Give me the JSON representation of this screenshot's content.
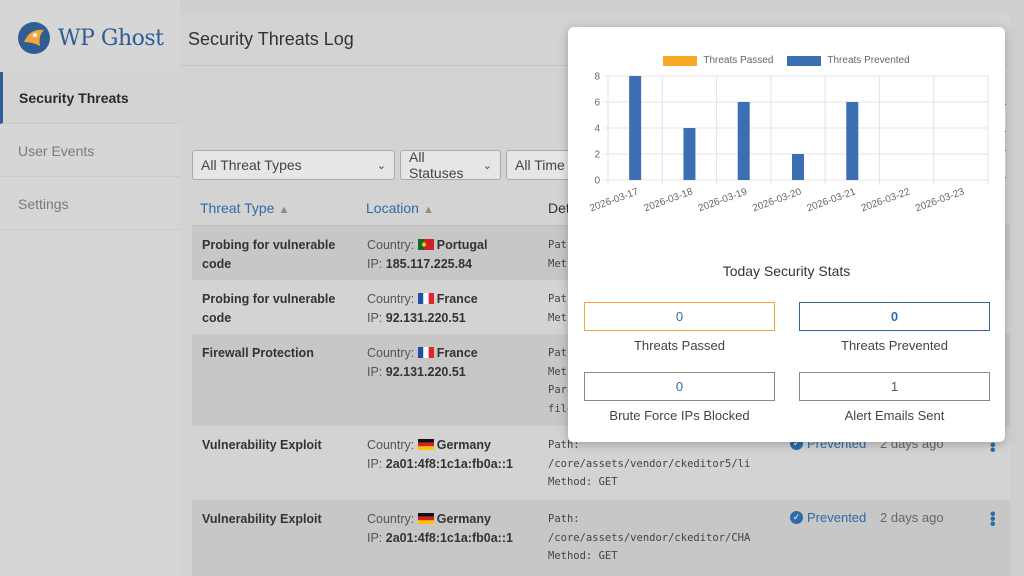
{
  "app": {
    "name": "WP Ghost"
  },
  "sidebar": {
    "items": [
      {
        "label": "Security Threats"
      },
      {
        "label": "User Events"
      },
      {
        "label": "Settings"
      }
    ]
  },
  "page": {
    "title": "Security Threats Log"
  },
  "filters": {
    "threat_types": "All Threat Types",
    "statuses": "All Statuses",
    "time": "All Time"
  },
  "table": {
    "headers": {
      "threat_type": "Threat Type",
      "location": "Location",
      "details": "Det"
    },
    "rows": [
      {
        "type": "Probing for vulnerable code",
        "country_label": "Country:",
        "country": "Portugal",
        "ip_label": "IP:",
        "ip": "185.117.225.84",
        "details": [
          "Path",
          "Met"
        ]
      },
      {
        "type": "Probing for vulnerable code",
        "country_label": "Country:",
        "country": "France",
        "ip_label": "IP:",
        "ip": "92.131.220.51",
        "details": [
          "Path",
          "Met"
        ]
      },
      {
        "type": "Firewall Protection",
        "country_label": "Country:",
        "country": "France",
        "ip_label": "IP:",
        "ip": "92.131.220.51",
        "details": [
          "Path",
          "Meth",
          "Para",
          "file"
        ]
      },
      {
        "type": "Vulnerability Exploit",
        "country_label": "Country:",
        "country": "Germany",
        "ip_label": "IP:",
        "ip": "2a01:4f8:1c1a:fb0a::1",
        "details": [
          "Path:",
          "/core/assets/vendor/ckeditor5/li",
          "Method: GET"
        ],
        "status": "Prevented",
        "when": "2 days ago"
      },
      {
        "type": "Vulnerability Exploit",
        "country_label": "Country:",
        "country": "Germany",
        "ip_label": "IP:",
        "ip": "2a01:4f8:1c1a:fb0a::1",
        "details": [
          "Path:",
          "/core/assets/vendor/ckeditor/CHA",
          "Method: GET"
        ],
        "status": "Prevented",
        "when": "2 days ago"
      }
    ]
  },
  "popup": {
    "legend": [
      "Threats Passed",
      "Threats Prevented"
    ],
    "stats_title": "Today Security Stats",
    "stats": [
      {
        "label": "Threats Passed",
        "value": "0"
      },
      {
        "label": "Threats Prevented",
        "value": "0"
      },
      {
        "label": "Brute Force IPs Blocked",
        "value": "0"
      },
      {
        "label": "Alert Emails Sent",
        "value": "1"
      }
    ]
  },
  "colors": {
    "passed": "#f9a825",
    "prevented": "#3c6fb1",
    "accent": "#2f6aa8"
  },
  "chart_data": {
    "type": "bar",
    "categories": [
      "2026-03-17",
      "2026-03-18",
      "2026-03-19",
      "2026-03-20",
      "2026-03-21",
      "2026-03-22",
      "2026-03-23"
    ],
    "series": [
      {
        "name": "Threats Passed",
        "values": [
          0,
          0,
          0,
          0,
          0,
          0,
          0
        ]
      },
      {
        "name": "Threats Prevented",
        "values": [
          8,
          4,
          6,
          2,
          6,
          0,
          0
        ]
      }
    ],
    "yticks": [
      "0",
      "2",
      "4",
      "6",
      "8"
    ],
    "ylim": [
      0,
      8
    ],
    "legend": "top-center"
  }
}
